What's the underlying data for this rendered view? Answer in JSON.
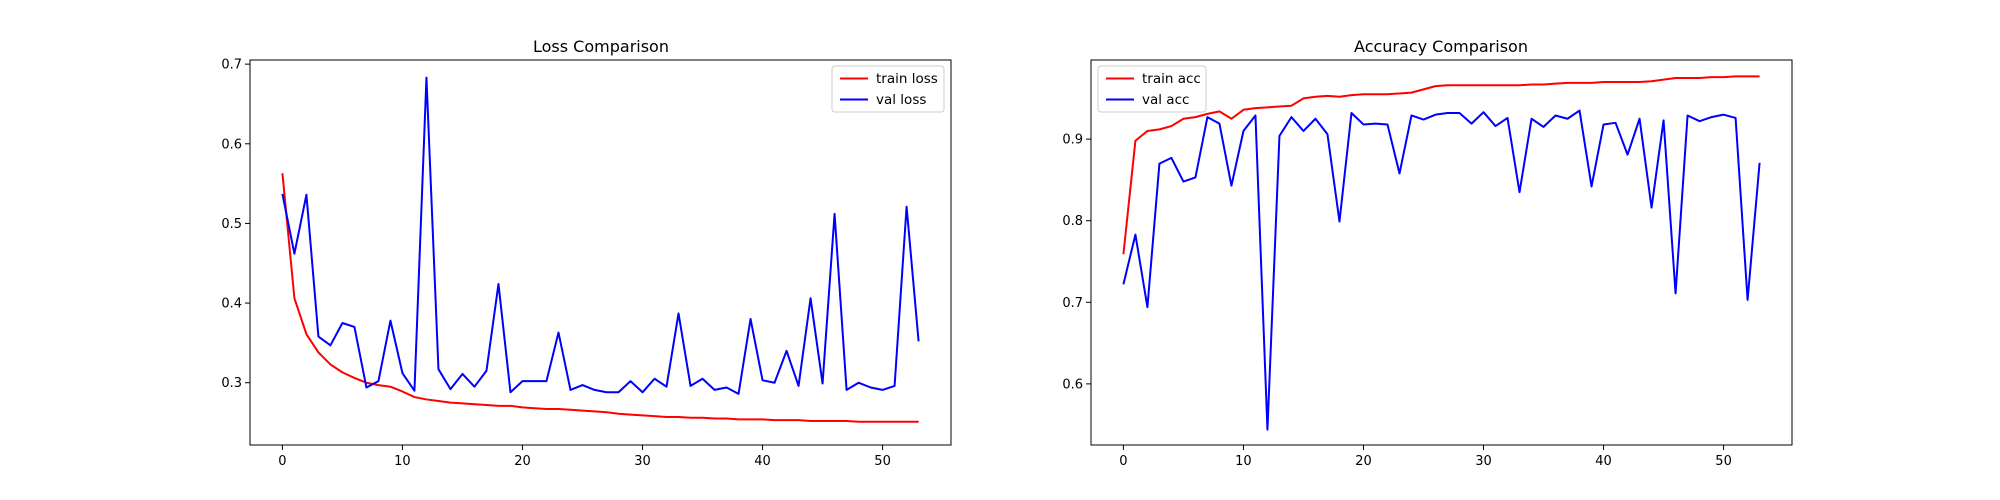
{
  "chart_data": [
    {
      "type": "line",
      "title": "Loss Comparison",
      "xlabel": "",
      "ylabel": "",
      "xlim": [
        -2.7,
        55.7
      ],
      "ylim": [
        0.2218,
        0.7052
      ],
      "xticks": [
        0,
        10,
        20,
        30,
        40,
        50
      ],
      "yticks": [
        0.3,
        0.4,
        0.5,
        0.6,
        0.7
      ],
      "xtick_labels": [
        "0",
        "10",
        "20",
        "30",
        "40",
        "50"
      ],
      "ytick_labels": [
        "0.3",
        "0.4",
        "0.5",
        "0.6",
        "0.7"
      ],
      "legend_position": "upper right",
      "grid": false,
      "series": [
        {
          "name": "train loss",
          "color": "#ff0000",
          "values": [
            0.563,
            0.406,
            0.361,
            0.338,
            0.323,
            0.313,
            0.306,
            0.3,
            0.297,
            0.295,
            0.289,
            0.282,
            0.279,
            0.277,
            0.275,
            0.274,
            0.273,
            0.272,
            0.271,
            0.271,
            0.269,
            0.268,
            0.267,
            0.267,
            0.266,
            0.265,
            0.264,
            0.263,
            0.261,
            0.26,
            0.259,
            0.258,
            0.257,
            0.257,
            0.256,
            0.256,
            0.255,
            0.255,
            0.254,
            0.254,
            0.254,
            0.253,
            0.253,
            0.253,
            0.252,
            0.252,
            0.252,
            0.252,
            0.251,
            0.251,
            0.251,
            0.251,
            0.251,
            0.251
          ]
        },
        {
          "name": "val loss",
          "color": "#0000ff",
          "values": [
            0.537,
            0.462,
            0.536,
            0.358,
            0.347,
            0.375,
            0.37,
            0.294,
            0.302,
            0.378,
            0.312,
            0.29,
            0.683,
            0.317,
            0.292,
            0.311,
            0.295,
            0.315,
            0.424,
            0.288,
            0.302,
            0.302,
            0.302,
            0.363,
            0.291,
            0.297,
            0.291,
            0.288,
            0.288,
            0.302,
            0.288,
            0.305,
            0.295,
            0.387,
            0.296,
            0.305,
            0.291,
            0.294,
            0.286,
            0.38,
            0.303,
            0.3,
            0.34,
            0.296,
            0.406,
            0.299,
            0.512,
            0.291,
            0.3,
            0.294,
            0.291,
            0.296,
            0.521,
            0.352
          ]
        }
      ]
    },
    {
      "type": "line",
      "title": "Accuracy Comparison",
      "xlabel": "",
      "ylabel": "",
      "xlim": [
        -2.7,
        55.7
      ],
      "ylim": [
        0.5251,
        0.997
      ],
      "xticks": [
        0,
        10,
        20,
        30,
        40,
        50
      ],
      "yticks": [
        0.6,
        0.7,
        0.8,
        0.9
      ],
      "xtick_labels": [
        "0",
        "10",
        "20",
        "30",
        "40",
        "50"
      ],
      "ytick_labels": [
        "0.6",
        "0.7",
        "0.8",
        "0.9"
      ],
      "legend_position": "upper left",
      "grid": false,
      "series": [
        {
          "name": "train acc",
          "color": "#ff0000",
          "values": [
            0.759,
            0.898,
            0.91,
            0.912,
            0.916,
            0.925,
            0.927,
            0.931,
            0.934,
            0.925,
            0.936,
            0.938,
            0.939,
            0.94,
            0.941,
            0.95,
            0.952,
            0.953,
            0.952,
            0.954,
            0.955,
            0.955,
            0.955,
            0.956,
            0.957,
            0.961,
            0.965,
            0.966,
            0.966,
            0.966,
            0.966,
            0.966,
            0.966,
            0.966,
            0.967,
            0.967,
            0.968,
            0.969,
            0.969,
            0.969,
            0.97,
            0.97,
            0.97,
            0.97,
            0.971,
            0.973,
            0.975,
            0.975,
            0.975,
            0.976,
            0.976,
            0.977,
            0.977,
            0.977
          ]
        },
        {
          "name": "val acc",
          "color": "#0000ff",
          "values": [
            0.722,
            0.783,
            0.694,
            0.87,
            0.877,
            0.848,
            0.853,
            0.927,
            0.919,
            0.843,
            0.91,
            0.929,
            0.544,
            0.904,
            0.927,
            0.91,
            0.925,
            0.906,
            0.799,
            0.932,
            0.918,
            0.919,
            0.918,
            0.858,
            0.929,
            0.924,
            0.93,
            0.932,
            0.932,
            0.919,
            0.933,
            0.916,
            0.926,
            0.835,
            0.925,
            0.915,
            0.929,
            0.925,
            0.935,
            0.842,
            0.918,
            0.92,
            0.881,
            0.925,
            0.816,
            0.923,
            0.711,
            0.929,
            0.922,
            0.927,
            0.93,
            0.926,
            0.703,
            0.871
          ]
        }
      ]
    }
  ]
}
